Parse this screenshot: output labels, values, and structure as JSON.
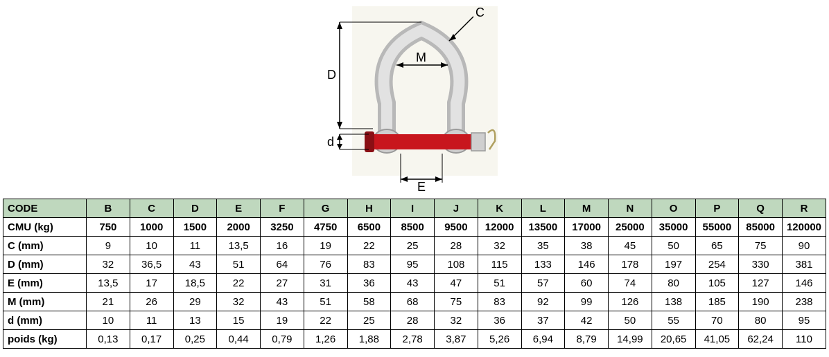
{
  "diagram": {
    "labels": {
      "C": "C",
      "D": "D",
      "d": "d",
      "M": "M",
      "E": "E"
    },
    "colors": {
      "shackle_outline": "#888888",
      "shackle_fill": "#d9d9d9",
      "pin": "#c8161d",
      "pin_dark": "#8a0f14",
      "dim_line": "#000000",
      "background": "#f7f6ef"
    }
  },
  "table": {
    "header_bg": "#bfd8be",
    "border_color": "#000000",
    "column_codes": [
      "B",
      "C",
      "D",
      "E",
      "F",
      "G",
      "H",
      "I",
      "J",
      "K",
      "L",
      "M",
      "N",
      "O",
      "P",
      "Q",
      "R"
    ],
    "row_header_label": "CODE",
    "rows": [
      {
        "label": "CMU (kg)",
        "bold": true,
        "values": [
          "750",
          "1000",
          "1500",
          "2000",
          "3250",
          "4750",
          "6500",
          "8500",
          "9500",
          "12000",
          "13500",
          "17000",
          "25000",
          "35000",
          "55000",
          "85000",
          "120000"
        ]
      },
      {
        "label": "C (mm)",
        "bold": false,
        "values": [
          "9",
          "10",
          "11",
          "13,5",
          "16",
          "19",
          "22",
          "25",
          "28",
          "32",
          "35",
          "38",
          "45",
          "50",
          "65",
          "75",
          "90"
        ]
      },
      {
        "label": "D (mm)",
        "bold": false,
        "values": [
          "32",
          "36,5",
          "43",
          "51",
          "64",
          "76",
          "83",
          "95",
          "108",
          "115",
          "133",
          "146",
          "178",
          "197",
          "254",
          "330",
          "381"
        ]
      },
      {
        "label": "E (mm)",
        "bold": false,
        "values": [
          "13,5",
          "17",
          "18,5",
          "22",
          "27",
          "31",
          "36",
          "43",
          "47",
          "51",
          "57",
          "60",
          "74",
          "80",
          "105",
          "127",
          "146"
        ]
      },
      {
        "label": "M (mm)",
        "bold": false,
        "values": [
          "21",
          "26",
          "29",
          "32",
          "43",
          "51",
          "58",
          "68",
          "75",
          "83",
          "92",
          "99",
          "126",
          "138",
          "185",
          "190",
          "238"
        ]
      },
      {
        "label": "d (mm)",
        "bold": false,
        "values": [
          "10",
          "11",
          "13",
          "15",
          "19",
          "22",
          "25",
          "28",
          "32",
          "36",
          "37",
          "42",
          "50",
          "55",
          "70",
          "80",
          "95"
        ]
      },
      {
        "label": "poids (kg)",
        "bold": false,
        "values": [
          "0,13",
          "0,17",
          "0,25",
          "0,44",
          "0,79",
          "1,26",
          "1,88",
          "2,78",
          "3,87",
          "5,26",
          "6,94",
          "8,79",
          "14,99",
          "20,65",
          "41,05",
          "62,24",
          "110"
        ]
      }
    ]
  }
}
